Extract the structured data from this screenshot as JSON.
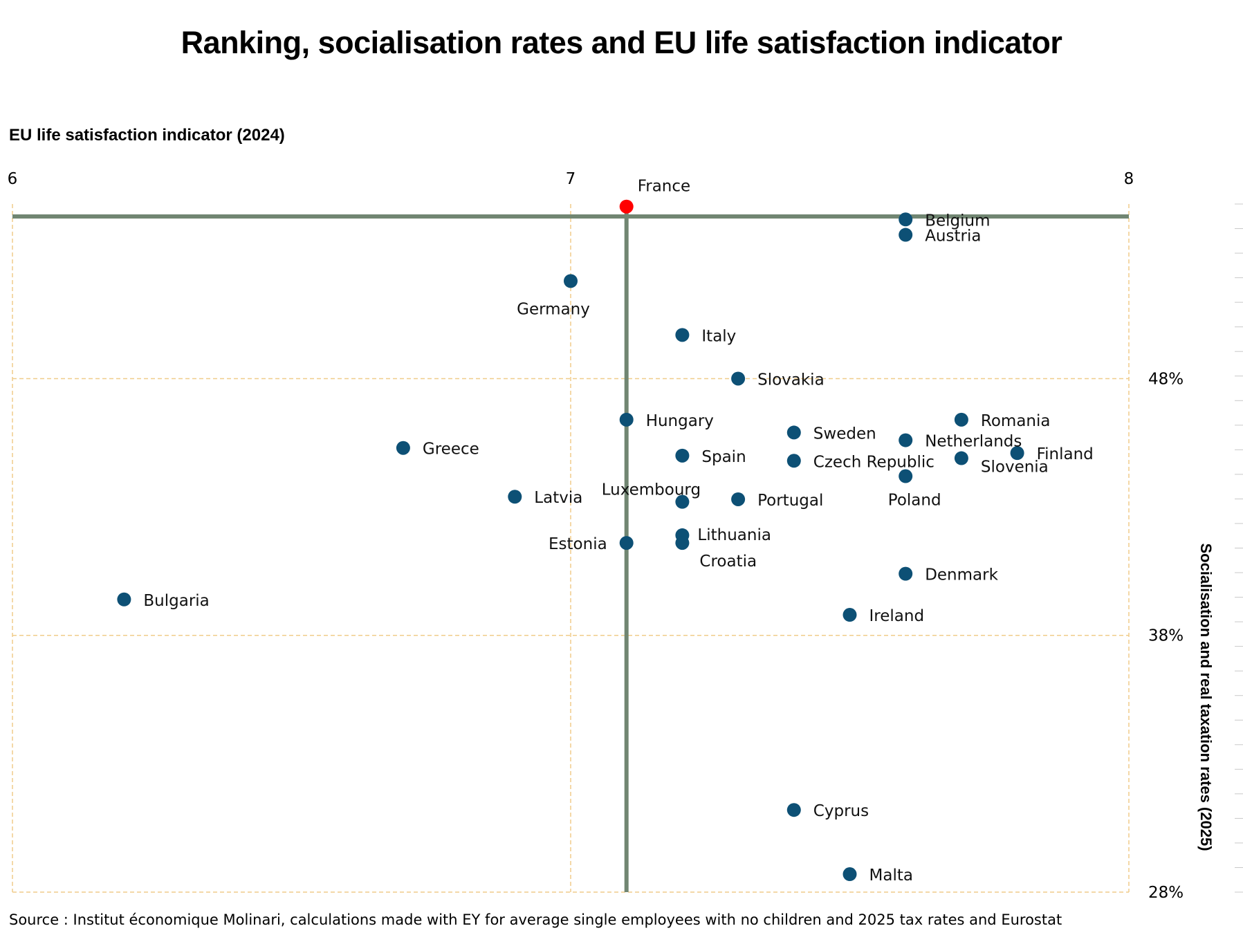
{
  "chart_data": {
    "type": "scatter",
    "title": "Ranking, socialisation rates and EU life satisfaction indicator",
    "xlabel": "EU life satisfaction indicator (2024)",
    "ylabel": "Socialisation and real taxation rates (2025)",
    "xlim": [
      6,
      8
    ],
    "ylim": [
      28,
      54.8
    ],
    "x_ticks": [
      "6",
      "7",
      "8"
    ],
    "y_ticks": [
      "48%",
      "38%",
      "28%"
    ],
    "grid": true,
    "reference_point": {
      "name": "France",
      "x": 7.1,
      "y": 54.7,
      "color": "#ff0000"
    },
    "point_color": "#0d5075",
    "axis_line_color": "#718672",
    "grid_color": "#f0cc8a",
    "points": [
      {
        "name": "Belgium",
        "x": 7.6,
        "y": 54.2
      },
      {
        "name": "Austria",
        "x": 7.6,
        "y": 53.6
      },
      {
        "name": "Germany",
        "x": 7.0,
        "y": 51.8
      },
      {
        "name": "Italy",
        "x": 7.2,
        "y": 49.7
      },
      {
        "name": "Slovakia",
        "x": 7.3,
        "y": 48.0
      },
      {
        "name": "Hungary",
        "x": 7.1,
        "y": 46.4
      },
      {
        "name": "Romania",
        "x": 7.7,
        "y": 46.4
      },
      {
        "name": "Sweden",
        "x": 7.4,
        "y": 45.9
      },
      {
        "name": "Netherlands",
        "x": 7.6,
        "y": 45.6
      },
      {
        "name": "Greece",
        "x": 6.7,
        "y": 45.3
      },
      {
        "name": "Finland",
        "x": 7.8,
        "y": 45.1
      },
      {
        "name": "Spain",
        "x": 7.2,
        "y": 45.0
      },
      {
        "name": "Slovenia",
        "x": 7.7,
        "y": 44.9
      },
      {
        "name": "Czech Republic",
        "x": 7.4,
        "y": 44.8
      },
      {
        "name": "Poland",
        "x": 7.6,
        "y": 44.2
      },
      {
        "name": "Latvia",
        "x": 6.9,
        "y": 43.4
      },
      {
        "name": "Portugal",
        "x": 7.3,
        "y": 43.3
      },
      {
        "name": "Luxembourg",
        "x": 7.2,
        "y": 43.2
      },
      {
        "name": "Lithuania",
        "x": 7.2,
        "y": 41.9
      },
      {
        "name": "Estonia",
        "x": 7.1,
        "y": 41.6
      },
      {
        "name": "Croatia",
        "x": 7.2,
        "y": 41.6
      },
      {
        "name": "Denmark",
        "x": 7.6,
        "y": 40.4
      },
      {
        "name": "Bulgaria",
        "x": 6.2,
        "y": 39.4
      },
      {
        "name": "Ireland",
        "x": 7.5,
        "y": 38.8
      },
      {
        "name": "Cyprus",
        "x": 7.4,
        "y": 31.2
      },
      {
        "name": "Malta",
        "x": 7.5,
        "y": 28.7
      }
    ]
  },
  "source": "Source : Institut économique Molinari, calculations made with EY for average single employees with no children and 2025 tax rates and Eurostat"
}
